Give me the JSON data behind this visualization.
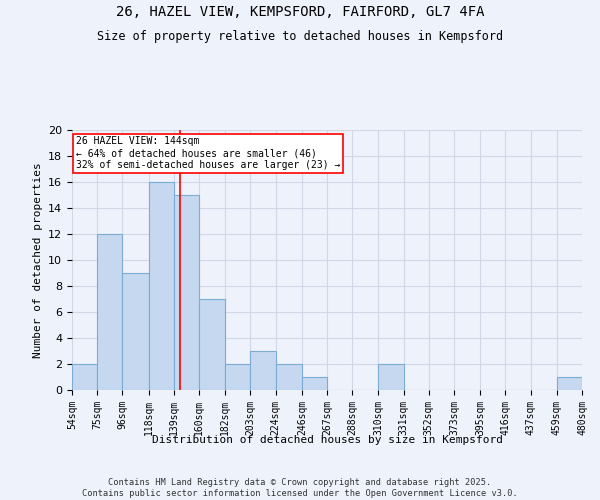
{
  "title1": "26, HAZEL VIEW, KEMPSFORD, FAIRFORD, GL7 4FA",
  "title2": "Size of property relative to detached houses in Kempsford",
  "xlabel": "Distribution of detached houses by size in Kempsford",
  "ylabel": "Number of detached properties",
  "bin_edges": [
    54,
    75,
    96,
    118,
    139,
    160,
    182,
    203,
    224,
    246,
    267,
    288,
    310,
    331,
    352,
    373,
    395,
    416,
    437,
    459,
    480
  ],
  "counts": [
    2,
    12,
    9,
    16,
    15,
    7,
    2,
    3,
    2,
    1,
    0,
    0,
    2,
    0,
    0,
    0,
    0,
    0,
    0,
    1
  ],
  "bar_color": "#c5d8f0",
  "bar_edge_color": "#7badd4",
  "red_line_x": 144,
  "annotation_text": "26 HAZEL VIEW: 144sqm\n← 64% of detached houses are smaller (46)\n32% of semi-detached houses are larger (23) →",
  "annotation_box_color": "white",
  "annotation_box_edge_color": "red",
  "ylim": [
    0,
    20
  ],
  "yticks": [
    0,
    2,
    4,
    6,
    8,
    10,
    12,
    14,
    16,
    18,
    20
  ],
  "grid_color": "#d0d8e8",
  "bg_color": "#eef2fb",
  "footer1": "Contains HM Land Registry data © Crown copyright and database right 2025.",
  "footer2": "Contains public sector information licensed under the Open Government Licence v3.0."
}
